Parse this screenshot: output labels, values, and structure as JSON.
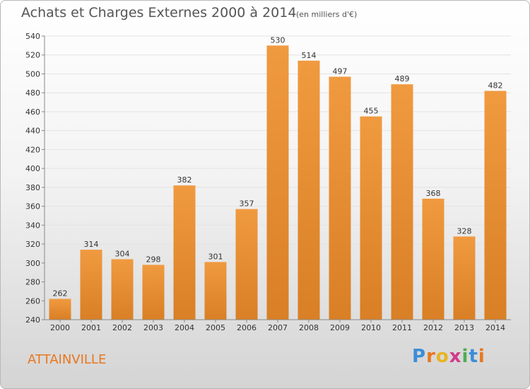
{
  "chart_data": {
    "type": "bar",
    "title": "Achats et Charges Externes 2000 à 2014",
    "subtitle": "(en milliers d'€)",
    "xlabel": "",
    "ylabel": "",
    "categories": [
      "2000",
      "2001",
      "2002",
      "2003",
      "2004",
      "2005",
      "2006",
      "2007",
      "2008",
      "2009",
      "2010",
      "2011",
      "2012",
      "2013",
      "2014"
    ],
    "values": [
      262,
      314,
      304,
      298,
      382,
      301,
      357,
      530,
      514,
      497,
      455,
      489,
      368,
      328,
      482
    ],
    "ylim": [
      240,
      540
    ],
    "yticks": [
      240,
      260,
      280,
      300,
      320,
      340,
      360,
      380,
      400,
      420,
      440,
      460,
      480,
      500,
      520,
      540
    ],
    "grid": true,
    "legend": "none",
    "bar_color": "#f09a40",
    "bar_color_dark": "#d97f25"
  },
  "commune": "ATTAINVILLE",
  "brand": {
    "letters": [
      "P",
      "r",
      "o",
      "x",
      "i",
      "t",
      "i"
    ],
    "colors": [
      "#3a8ed8",
      "#e8771f",
      "#e8b41f",
      "#d23a8c",
      "#4caf50",
      "#3a8ed8",
      "#e8771f"
    ]
  }
}
